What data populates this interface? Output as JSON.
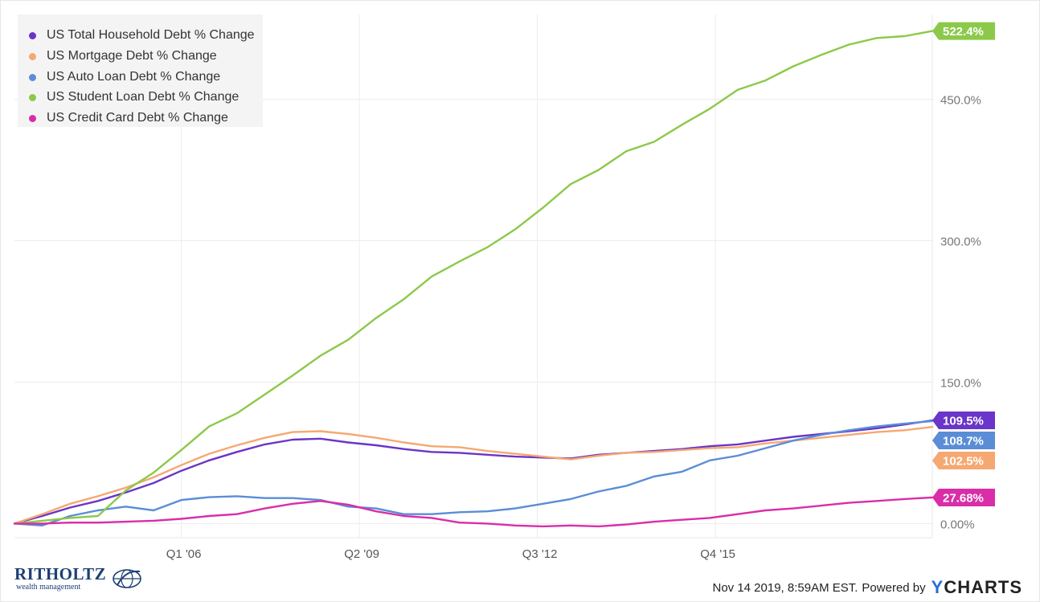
{
  "colors": {
    "total": "#6a35c8",
    "mortgage": "#f6a872",
    "auto": "#5a8dd6",
    "student": "#8cc94a",
    "credit": "#d92ea8"
  },
  "footer": {
    "logo_main": "RITHOLTZ",
    "logo_sub": "wealth management",
    "timestamp": "Nov 14 2019, 8:59AM EST.",
    "powered_by": "Powered by",
    "brand_y": "Y",
    "brand_rest": "CHARTS"
  },
  "chart_data": {
    "type": "line",
    "title": "",
    "xlabel": "",
    "ylabel": "",
    "x_start": "Q1 2003",
    "x_end": "Q3 2019",
    "xlim": [
      2003.0,
      2019.5
    ],
    "ylim": [
      -15,
      540
    ],
    "x_ticks": [
      {
        "label": "Q1 '06",
        "x": 2006.0
      },
      {
        "label": "Q2 '09",
        "x": 2009.2
      },
      {
        "label": "Q3 '12",
        "x": 2012.4
      },
      {
        "label": "Q4 '15",
        "x": 2015.6
      }
    ],
    "y_ticks": [
      {
        "label": "0.00%",
        "y": 0
      },
      {
        "label": "150.0%",
        "y": 150
      },
      {
        "label": "300.0%",
        "y": 300
      },
      {
        "label": "450.0%",
        "y": 450
      }
    ],
    "grid": true,
    "legend_position": "top-left",
    "series": [
      {
        "key": "total",
        "name": "US Total Household Debt % Change",
        "end_label": "109.5%",
        "x": [
          2003.0,
          2003.5,
          2004.0,
          2004.5,
          2005.0,
          2005.5,
          2006.0,
          2006.5,
          2007.0,
          2007.5,
          2008.0,
          2008.5,
          2009.0,
          2009.5,
          2010.0,
          2010.5,
          2011.0,
          2011.5,
          2012.0,
          2012.5,
          2013.0,
          2013.5,
          2014.0,
          2014.5,
          2015.0,
          2015.5,
          2016.0,
          2016.5,
          2017.0,
          2017.5,
          2018.0,
          2018.5,
          2019.0,
          2019.5
        ],
        "values": [
          0,
          8,
          17,
          24,
          33,
          43,
          56,
          67,
          76,
          84,
          89,
          90,
          86,
          83,
          79,
          76,
          75,
          73,
          71,
          70,
          69,
          73,
          75,
          77,
          79,
          82,
          84,
          88,
          92,
          95,
          98,
          101,
          105,
          109.5
        ]
      },
      {
        "key": "mortgage",
        "name": "US Mortgage Debt % Change",
        "end_label": "102.5%",
        "x": [
          2003.0,
          2003.5,
          2004.0,
          2004.5,
          2005.0,
          2005.5,
          2006.0,
          2006.5,
          2007.0,
          2007.5,
          2008.0,
          2008.5,
          2009.0,
          2009.5,
          2010.0,
          2010.5,
          2011.0,
          2011.5,
          2012.0,
          2012.5,
          2013.0,
          2013.5,
          2014.0,
          2014.5,
          2015.0,
          2015.5,
          2016.0,
          2016.5,
          2017.0,
          2017.5,
          2018.0,
          2018.5,
          2019.0,
          2019.5
        ],
        "values": [
          0,
          10,
          21,
          29,
          38,
          49,
          62,
          74,
          83,
          91,
          97,
          98,
          95,
          91,
          86,
          82,
          81,
          77,
          74,
          71,
          68,
          72,
          75,
          76,
          78,
          80,
          81,
          85,
          88,
          91,
          94,
          97,
          99,
          102.5
        ]
      },
      {
        "key": "auto",
        "name": "US Auto Loan Debt % Change",
        "end_label": "108.7%",
        "x": [
          2003.0,
          2003.5,
          2004.0,
          2004.5,
          2005.0,
          2005.5,
          2006.0,
          2006.5,
          2007.0,
          2007.5,
          2008.0,
          2008.5,
          2009.0,
          2009.5,
          2010.0,
          2010.5,
          2011.0,
          2011.5,
          2012.0,
          2012.5,
          2013.0,
          2013.5,
          2014.0,
          2014.5,
          2015.0,
          2015.5,
          2016.0,
          2016.5,
          2017.0,
          2017.5,
          2018.0,
          2018.5,
          2019.0,
          2019.5
        ],
        "values": [
          0,
          -2,
          8,
          14,
          18,
          14,
          25,
          28,
          29,
          27,
          27,
          25,
          18,
          16,
          10,
          10,
          12,
          13,
          16,
          21,
          26,
          34,
          40,
          50,
          55,
          67,
          72,
          80,
          88,
          94,
          99,
          103,
          106,
          108.7
        ]
      },
      {
        "key": "student",
        "name": "US Student Loan Debt % Change",
        "end_label": "522.4%",
        "x": [
          2003.0,
          2003.5,
          2004.0,
          2004.5,
          2005.0,
          2005.5,
          2006.0,
          2006.5,
          2007.0,
          2007.5,
          2008.0,
          2008.5,
          2009.0,
          2009.5,
          2010.0,
          2010.5,
          2011.0,
          2011.5,
          2012.0,
          2012.5,
          2013.0,
          2013.5,
          2014.0,
          2014.5,
          2015.0,
          2015.5,
          2016.0,
          2016.5,
          2017.0,
          2017.5,
          2018.0,
          2018.5,
          2019.0,
          2019.5
        ],
        "values": [
          0,
          3,
          6,
          8,
          35,
          54,
          78,
          103,
          117,
          137,
          157,
          178,
          195,
          218,
          238,
          262,
          278,
          293,
          312,
          335,
          360,
          375,
          395,
          405,
          423,
          440,
          460,
          470,
          485,
          497,
          508,
          515,
          517,
          522.4
        ]
      },
      {
        "key": "credit",
        "name": "US Credit Card Debt % Change",
        "end_label": "27.68%",
        "x": [
          2003.0,
          2003.5,
          2004.0,
          2004.5,
          2005.0,
          2005.5,
          2006.0,
          2006.5,
          2007.0,
          2007.5,
          2008.0,
          2008.5,
          2009.0,
          2009.5,
          2010.0,
          2010.5,
          2011.0,
          2011.5,
          2012.0,
          2012.5,
          2013.0,
          2013.5,
          2014.0,
          2014.5,
          2015.0,
          2015.5,
          2016.0,
          2016.5,
          2017.0,
          2017.5,
          2018.0,
          2018.5,
          2019.0,
          2019.5
        ],
        "values": [
          0,
          0,
          1,
          1,
          2,
          3,
          5,
          8,
          10,
          16,
          21,
          24,
          20,
          13,
          8,
          6,
          1,
          0,
          -2,
          -3,
          -2,
          -3,
          -1,
          2,
          4,
          6,
          10,
          14,
          16,
          19,
          22,
          24,
          26,
          27.68
        ]
      }
    ]
  }
}
